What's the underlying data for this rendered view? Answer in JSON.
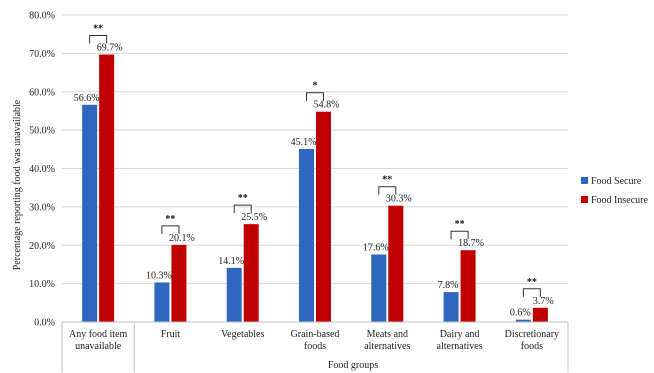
{
  "chart_data": {
    "type": "bar",
    "title": "",
    "xlabel": "Food groups",
    "ylabel": "Percentage reporting food was unavailable",
    "ylim": [
      0,
      80
    ],
    "yticks": [
      "0.0%",
      "10.0%",
      "20.0%",
      "30.0%",
      "40.0%",
      "50.0%",
      "60.0%",
      "70.0%",
      "80.0%"
    ],
    "grid": "horizontal",
    "legend_position": "right",
    "categories": [
      [
        "Any food item",
        "unavailable"
      ],
      [
        "Fruit"
      ],
      [
        "Vegetables"
      ],
      [
        "Grain-based",
        "foods"
      ],
      [
        "Meats and",
        "alternatives"
      ],
      [
        "Dairy and",
        "alternatives"
      ],
      [
        "Discretionary",
        "foods"
      ]
    ],
    "series": [
      {
        "name": "Food Secure",
        "color": "#2e66c0",
        "values": [
          56.6,
          10.3,
          14.1,
          45.1,
          17.6,
          7.8,
          0.6
        ],
        "labels": [
          "56.6%",
          "10.3%",
          "14.1%",
          "45.1%",
          "17.6%",
          "7.8%",
          "0.6%"
        ]
      },
      {
        "name": "Food Insecure",
        "color": "#c00000",
        "values": [
          69.7,
          20.1,
          25.5,
          54.8,
          30.3,
          18.7,
          3.7
        ],
        "labels": [
          "69.7%",
          "20.1%",
          "25.5%",
          "54.8%",
          "30.3%",
          "18.7%",
          "3.7%"
        ]
      }
    ],
    "significance": [
      "**",
      "**",
      "**",
      "*",
      "**",
      "**",
      "**"
    ]
  }
}
